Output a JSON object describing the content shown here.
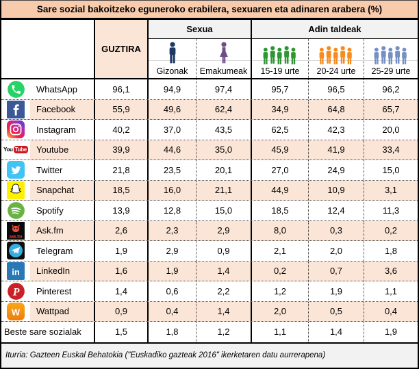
{
  "title": "Sare sozial bakoitzeko eguneroko erabilera, sexuaren eta adinaren arabera (%)",
  "header": {
    "total_label": "GUZTIRA",
    "groups": [
      "Sexua",
      "Adin taldeak"
    ],
    "columns": [
      {
        "label": "Gizonak",
        "icon": "man-icon",
        "color": "#1F3864"
      },
      {
        "label": "Emakumeak",
        "icon": "woman-icon",
        "color": "#6F4E87"
      },
      {
        "label": "15-19 urte",
        "icon": "group-icon",
        "color": "#2D9732"
      },
      {
        "label": "20-24 urte",
        "icon": "group-icon",
        "color": "#F68C1E"
      },
      {
        "label": "25-29 urte",
        "icon": "group-icon",
        "color": "#7590C4"
      }
    ]
  },
  "rows": [
    {
      "name": "WhatsApp",
      "icon": "whatsapp-icon",
      "values": [
        "96,1",
        "94,9",
        "97,4",
        "95,7",
        "96,5",
        "96,2"
      ]
    },
    {
      "name": "Facebook",
      "icon": "facebook-icon",
      "values": [
        "55,9",
        "49,6",
        "62,4",
        "34,9",
        "64,8",
        "65,7"
      ]
    },
    {
      "name": "Instagram",
      "icon": "instagram-icon",
      "values": [
        "40,2",
        "37,0",
        "43,5",
        "62,5",
        "42,3",
        "20,0"
      ]
    },
    {
      "name": "Youtube",
      "icon": "youtube-icon",
      "values": [
        "39,9",
        "44,6",
        "35,0",
        "45,9",
        "41,9",
        "33,4"
      ]
    },
    {
      "name": "Twitter",
      "icon": "twitter-icon",
      "values": [
        "21,8",
        "23,5",
        "20,1",
        "27,0",
        "24,9",
        "15,0"
      ]
    },
    {
      "name": "Snapchat",
      "icon": "snapchat-icon",
      "values": [
        "18,5",
        "16,0",
        "21,1",
        "44,9",
        "10,9",
        "3,1"
      ]
    },
    {
      "name": "Spotify",
      "icon": "spotify-icon",
      "values": [
        "13,9",
        "12,8",
        "15,0",
        "18,5",
        "12,4",
        "11,3"
      ]
    },
    {
      "name": "Ask.fm",
      "icon": "askfm-icon",
      "values": [
        "2,6",
        "2,3",
        "2,9",
        "8,0",
        "0,3",
        "0,2"
      ]
    },
    {
      "name": "Telegram",
      "icon": "telegram-icon",
      "values": [
        "1,9",
        "2,9",
        "0,9",
        "2,1",
        "2,0",
        "1,8"
      ]
    },
    {
      "name": "LinkedIn",
      "icon": "linkedin-icon",
      "values": [
        "1,6",
        "1,9",
        "1,4",
        "0,2",
        "0,7",
        "3,6"
      ]
    },
    {
      "name": "Pinterest",
      "icon": "pinterest-icon",
      "values": [
        "1,4",
        "0,6",
        "2,2",
        "1,2",
        "1,9",
        "1,1"
      ]
    },
    {
      "name": "Wattpad",
      "icon": "wattpad-icon",
      "values": [
        "0,9",
        "0,4",
        "1,4",
        "2,0",
        "0,5",
        "0,4"
      ]
    },
    {
      "name": "Beste sare sozialak",
      "icon": null,
      "values": [
        "1,5",
        "1,8",
        "1,2",
        "1,1",
        "1,4",
        "1,9"
      ]
    }
  ],
  "footer": "Iturria: Gazteen Euskal Behatokia (\"Euskadiko gazteak 2016\" ikerketaren datu aurrerapena)",
  "colors": {
    "title_bg": "#F8CBAD",
    "stripe_bg": "#FBE5D6",
    "header_band_bg": "#F2F2F2",
    "footer_bg": "#F2F2F2",
    "border": "#000000"
  },
  "chart_data": {
    "type": "table",
    "title": "Sare sozial bakoitzeko eguneroko erabilera, sexuaren eta adinaren arabera (%)",
    "columns": [
      "GUZTIRA",
      "Gizonak",
      "Emakumeak",
      "15-19 urte",
      "20-24 urte",
      "25-29 urte"
    ],
    "column_groups": [
      {
        "label": "Sexua",
        "columns": [
          "Gizonak",
          "Emakumeak"
        ]
      },
      {
        "label": "Adin taldeak",
        "columns": [
          "15-19 urte",
          "20-24 urte",
          "25-29 urte"
        ]
      }
    ],
    "row_labels": [
      "WhatsApp",
      "Facebook",
      "Instagram",
      "Youtube",
      "Twitter",
      "Snapchat",
      "Spotify",
      "Ask.fm",
      "Telegram",
      "LinkedIn",
      "Pinterest",
      "Wattpad",
      "Beste sare sozialak"
    ],
    "values": [
      [
        96.1,
        94.9,
        97.4,
        95.7,
        96.5,
        96.2
      ],
      [
        55.9,
        49.6,
        62.4,
        34.9,
        64.8,
        65.7
      ],
      [
        40.2,
        37.0,
        43.5,
        62.5,
        42.3,
        20.0
      ],
      [
        39.9,
        44.6,
        35.0,
        45.9,
        41.9,
        33.4
      ],
      [
        21.8,
        23.5,
        20.1,
        27.0,
        24.9,
        15.0
      ],
      [
        18.5,
        16.0,
        21.1,
        44.9,
        10.9,
        3.1
      ],
      [
        13.9,
        12.8,
        15.0,
        18.5,
        12.4,
        11.3
      ],
      [
        2.6,
        2.3,
        2.9,
        8.0,
        0.3,
        0.2
      ],
      [
        1.9,
        2.9,
        0.9,
        2.1,
        2.0,
        1.8
      ],
      [
        1.6,
        1.9,
        1.4,
        0.2,
        0.7,
        3.6
      ],
      [
        1.4,
        0.6,
        2.2,
        1.2,
        1.9,
        1.1
      ],
      [
        0.9,
        0.4,
        1.4,
        2.0,
        0.5,
        0.4
      ],
      [
        1.5,
        1.8,
        1.2,
        1.1,
        1.4,
        1.9
      ]
    ],
    "units": "%",
    "source": "Iturria: Gazteen Euskal Behatokia (\"Euskadiko gazteak 2016\" ikerketaren datu aurrerapena)"
  }
}
